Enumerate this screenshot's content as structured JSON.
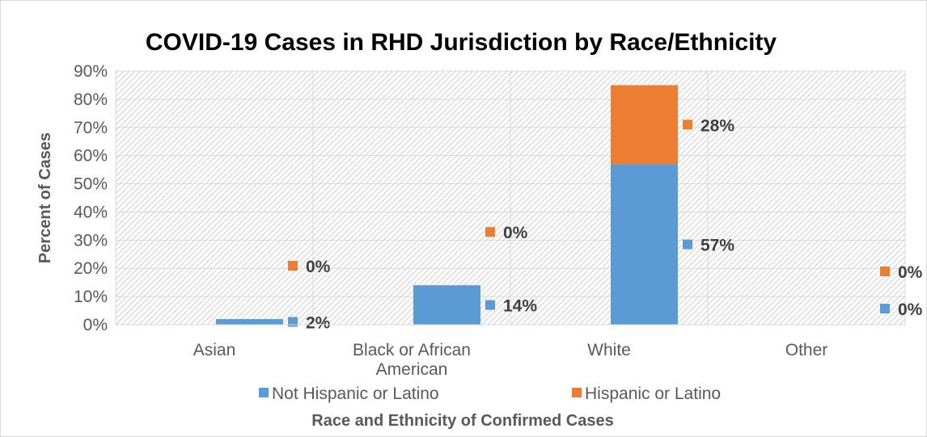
{
  "chart_data": {
    "type": "bar",
    "stacked": true,
    "title": "COVID-19 Cases in RHD Jurisdiction by Race/Ethnicity",
    "xlabel": "Race and Ethnicity of Confirmed Cases",
    "ylabel": "Percent of Cases",
    "ylim": [
      0,
      90
    ],
    "y_ticks": [
      "0%",
      "10%",
      "20%",
      "30%",
      "40%",
      "50%",
      "60%",
      "70%",
      "80%",
      "90%"
    ],
    "categories": [
      [
        "Asian"
      ],
      [
        "Black or African",
        "American"
      ],
      [
        "White"
      ],
      [
        "Other"
      ]
    ],
    "series": [
      {
        "name": "Not Hispanic or Latino",
        "color": "#5B9BD5",
        "values": [
          2,
          14,
          57,
          0
        ],
        "labels": [
          "2%",
          "14%",
          "57%",
          "0%"
        ]
      },
      {
        "name": "Hispanic or Latino",
        "color": "#ED7D31",
        "values": [
          0,
          0,
          28,
          0
        ],
        "labels": [
          "0%",
          "0%",
          "28%",
          "0%"
        ]
      }
    ],
    "grid": true,
    "legend_position": "bottom"
  }
}
